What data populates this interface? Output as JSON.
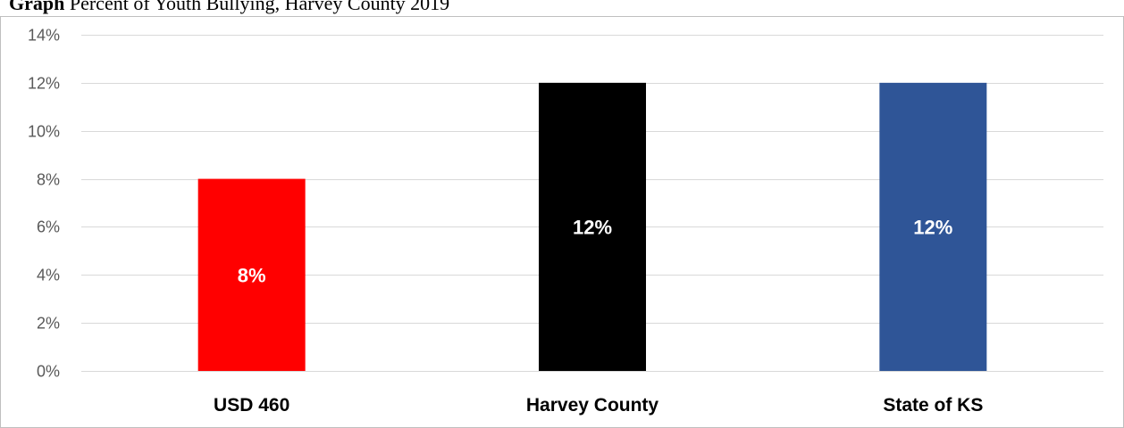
{
  "heading": {
    "bold_text": "Graph",
    "text": "Percent of Youth Bullying, Harvey County 2019"
  },
  "chart_data": {
    "type": "bar",
    "title": "",
    "xlabel": "",
    "ylabel": "",
    "categories": [
      "USD 460",
      "Harvey County",
      "State of KS"
    ],
    "values": [
      8,
      12,
      12
    ],
    "data_labels": [
      "8%",
      "12%",
      "12%"
    ],
    "ylim": [
      0,
      14
    ],
    "y_ticks": [
      0,
      2,
      4,
      6,
      8,
      10,
      12,
      14
    ],
    "y_tick_labels": [
      "0%",
      "2%",
      "4%",
      "6%",
      "8%",
      "10%",
      "12%",
      "14%"
    ],
    "bar_colors": [
      "#ff0000",
      "#000000",
      "#2f5597"
    ],
    "grid": true,
    "legend": "none"
  }
}
